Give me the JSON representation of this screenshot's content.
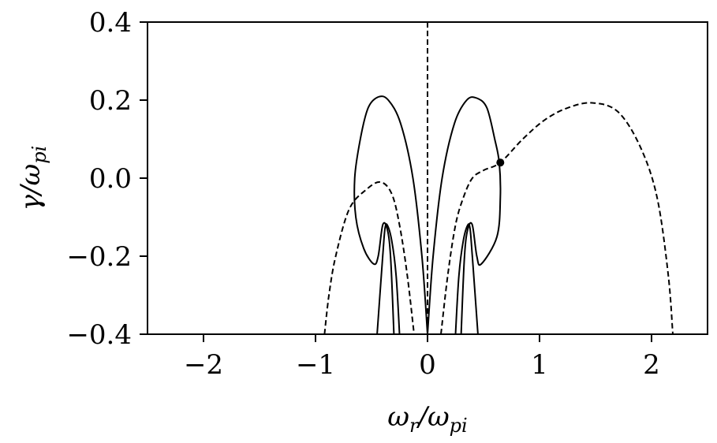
{
  "chart_data": {
    "type": "line",
    "title": "",
    "xlabel": "ω_r/ω_pi",
    "ylabel": "γ/ω_pi",
    "xlim": [
      -2.5,
      2.5
    ],
    "ylim": [
      -0.4,
      0.4
    ],
    "xticks": [
      -2,
      -1,
      0,
      1,
      2
    ],
    "xtick_labels": [
      "−2",
      "−1",
      "0",
      "1",
      "2"
    ],
    "yticks": [
      -0.4,
      -0.2,
      0.0,
      0.2,
      0.4
    ],
    "ytick_labels": [
      "−0.4",
      "−0.2",
      "0.0",
      "0.2",
      "0.4"
    ],
    "grid": false,
    "legend": "none",
    "series": [
      {
        "style": "solid",
        "points": [
          [
            0.0,
            -0.4
          ],
          [
            -0.05,
            -0.2
          ],
          [
            -0.13,
            0.0
          ],
          [
            -0.24,
            0.14
          ],
          [
            -0.35,
            0.2
          ],
          [
            -0.44,
            0.208
          ],
          [
            -0.53,
            0.18
          ],
          [
            -0.6,
            0.1
          ],
          [
            -0.65,
            0.0
          ],
          [
            -0.64,
            -0.1
          ],
          [
            -0.57,
            -0.18
          ],
          [
            -0.48,
            -0.22
          ],
          [
            -0.44,
            -0.2
          ],
          [
            -0.4,
            -0.12
          ],
          [
            -0.36,
            -0.13
          ],
          [
            -0.33,
            -0.2
          ],
          [
            -0.3,
            -0.4
          ]
        ]
      },
      {
        "style": "solid",
        "points": [
          [
            0.0,
            -0.4
          ],
          [
            0.05,
            -0.2
          ],
          [
            0.13,
            0.0
          ],
          [
            0.24,
            0.14
          ],
          [
            0.35,
            0.2
          ],
          [
            0.44,
            0.205
          ],
          [
            0.53,
            0.18
          ],
          [
            0.6,
            0.1
          ],
          [
            0.64,
            0.04
          ],
          [
            0.65,
            -0.05
          ],
          [
            0.62,
            -0.15
          ],
          [
            0.48,
            -0.22
          ],
          [
            0.44,
            -0.2
          ],
          [
            0.4,
            -0.12
          ],
          [
            0.36,
            -0.13
          ],
          [
            0.33,
            -0.2
          ],
          [
            0.3,
            -0.4
          ]
        ]
      },
      {
        "style": "dashed",
        "points": [
          [
            0.0,
            0.4
          ],
          [
            0.0,
            -0.4
          ]
        ]
      },
      {
        "style": "dashed",
        "points": [
          [
            -0.92,
            -0.4
          ],
          [
            -0.88,
            -0.3
          ],
          [
            -0.82,
            -0.2
          ],
          [
            -0.7,
            -0.08
          ],
          [
            -0.55,
            -0.03
          ],
          [
            -0.42,
            -0.01
          ],
          [
            -0.32,
            -0.04
          ],
          [
            -0.25,
            -0.12
          ],
          [
            -0.18,
            -0.25
          ],
          [
            -0.12,
            -0.4
          ]
        ]
      },
      {
        "style": "dashed",
        "points": [
          [
            0.12,
            -0.4
          ],
          [
            0.18,
            -0.25
          ],
          [
            0.25,
            -0.12
          ],
          [
            0.32,
            -0.05
          ],
          [
            0.4,
            0.0
          ],
          [
            0.5,
            0.02
          ],
          [
            0.65,
            0.04
          ],
          [
            0.85,
            0.1
          ],
          [
            1.05,
            0.15
          ],
          [
            1.25,
            0.18
          ],
          [
            1.47,
            0.193
          ],
          [
            1.7,
            0.17
          ],
          [
            1.9,
            0.08
          ],
          [
            2.05,
            -0.05
          ],
          [
            2.15,
            -0.25
          ],
          [
            2.19,
            -0.4
          ]
        ]
      },
      {
        "style": "solid",
        "points": [
          [
            -0.25,
            -0.4
          ],
          [
            -0.28,
            -0.25
          ],
          [
            -0.32,
            -0.16
          ],
          [
            -0.36,
            -0.12
          ],
          [
            -0.38,
            -0.13
          ],
          [
            -0.4,
            -0.2
          ],
          [
            -0.45,
            -0.4
          ]
        ]
      },
      {
        "style": "solid",
        "points": [
          [
            0.25,
            -0.4
          ],
          [
            0.28,
            -0.25
          ],
          [
            0.32,
            -0.16
          ],
          [
            0.36,
            -0.12
          ],
          [
            0.38,
            -0.13
          ],
          [
            0.4,
            -0.2
          ],
          [
            0.45,
            -0.4
          ]
        ]
      }
    ],
    "marker": {
      "x": 0.65,
      "y": 0.04
    }
  }
}
